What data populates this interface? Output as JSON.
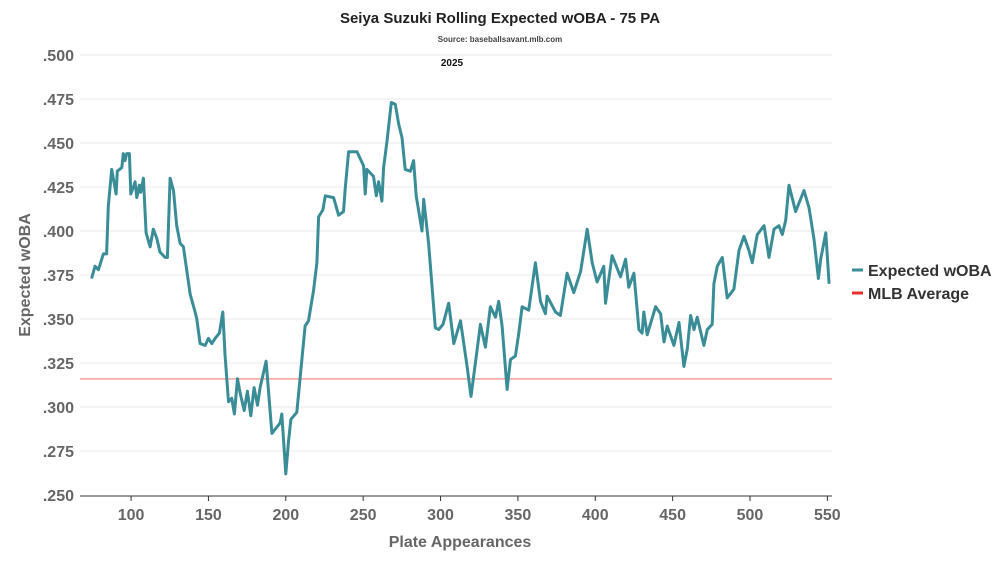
{
  "chart_data": {
    "type": "line",
    "title": "Seiya Suzuki Rolling Expected wOBA - 75 PA",
    "subtitle": "Source: baseballsavant.mlb.com",
    "annotation": "2025",
    "xlabel": "Plate Appearances",
    "ylabel": "Expected wOBA",
    "xlim": [
      67,
      553
    ],
    "ylim": [
      0.25,
      0.5
    ],
    "xticks": [
      100,
      150,
      200,
      250,
      300,
      350,
      400,
      450,
      500,
      550
    ],
    "xtick_labels": [
      "100",
      "150",
      "200",
      "250",
      "300",
      "350",
      "400",
      "450",
      "500",
      "550"
    ],
    "yticks": [
      0.25,
      0.275,
      0.3,
      0.325,
      0.35,
      0.375,
      0.4,
      0.425,
      0.45,
      0.475,
      0.5
    ],
    "ytick_labels": [
      ".250",
      ".275",
      ".300",
      ".325",
      ".350",
      ".375",
      ".400",
      ".425",
      ".450",
      ".475",
      ".500"
    ],
    "grid": true,
    "legend_position": "right",
    "series": [
      {
        "name": "Expected wOBA",
        "color": "#3a8d96",
        "x": [
          74.5,
          76.7,
          78.9,
          82.1,
          84.2,
          85.3,
          87.5,
          90.3,
          91.1,
          94,
          95,
          96.1,
          97.2,
          98.9,
          99.8,
          101.5,
          102.6,
          103.7,
          105.4,
          106.2,
          108,
          109.7,
          112.3,
          114.4,
          116.6,
          118.7,
          122,
          123.5,
          125.2,
          127.4,
          129.5,
          131.7,
          133.8,
          138.2,
          141.4,
          142.5,
          144.6,
          147.9,
          150,
          152.2,
          154.3,
          157.1,
          159.3,
          160.8,
          163,
          165.1,
          166.8,
          168.8,
          170.5,
          173.1,
          175.2,
          177.4,
          179.5,
          181.7,
          183.4,
          187.3,
          191,
          196.4,
          197.4,
          200,
          201.8,
          203.3,
          207.1,
          209.3,
          212.5,
          214.7,
          217.9,
          220.1,
          221.2,
          224,
          225.5,
          230.9,
          234.1,
          237.3,
          238.4,
          240.6,
          246,
          250.3,
          251.3,
          252.4,
          256.7,
          258.5,
          260,
          262.1,
          263.2,
          265.4,
          268.2,
          270.8,
          272.9,
          275.1,
          277.2,
          280.5,
          282.6,
          284.3,
          288,
          289.1,
          292.3,
          296.6,
          298.8,
          301.6,
          305.3,
          308.6,
          312.9,
          317.2,
          319.7,
          323.6,
          325.8,
          329,
          332.2,
          335.5,
          337.6,
          339.8,
          343,
          345.2,
          348.4,
          350.6,
          352.7,
          357,
          361.3,
          364.6,
          367.8,
          368.9,
          374.3,
          377.5,
          381.8,
          386.1,
          390.5,
          394.8,
          398,
          401.2,
          405.5,
          406.6,
          410.9,
          416.3,
          419.6,
          421.7,
          425,
          428.2,
          430.3,
          431.4,
          433.6,
          439,
          442.2,
          444.4,
          446.5,
          450.8,
          454.1,
          457.3,
          459.5,
          461.6,
          463.8,
          465.9,
          470.2,
          472.4,
          475.6,
          476.7,
          478.9,
          482.1,
          485.3,
          489.6,
          492.9,
          496.1,
          499.3,
          501.5,
          504.7,
          509.1,
          512.3,
          515.5,
          518.7,
          520.9,
          523.1,
          525.2,
          529.5,
          534.9,
          538.2,
          541.4,
          544.2,
          545.7,
          549,
          551.1
        ],
        "y": [
          0.373,
          0.38,
          0.378,
          0.387,
          0.387,
          0.414,
          0.435,
          0.421,
          0.434,
          0.436,
          0.444,
          0.44,
          0.444,
          0.444,
          0.421,
          0.425,
          0.428,
          0.419,
          0.426,
          0.422,
          0.43,
          0.399,
          0.391,
          0.401,
          0.396,
          0.388,
          0.385,
          0.385,
          0.43,
          0.423,
          0.403,
          0.393,
          0.391,
          0.364,
          0.354,
          0.35,
          0.336,
          0.335,
          0.339,
          0.336,
          0.339,
          0.342,
          0.354,
          0.329,
          0.303,
          0.305,
          0.296,
          0.316,
          0.308,
          0.298,
          0.309,
          0.295,
          0.311,
          0.301,
          0.311,
          0.326,
          0.285,
          0.291,
          0.296,
          0.262,
          0.281,
          0.293,
          0.297,
          0.317,
          0.346,
          0.349,
          0.366,
          0.382,
          0.408,
          0.412,
          0.42,
          0.419,
          0.409,
          0.411,
          0.424,
          0.445,
          0.445,
          0.437,
          0.421,
          0.435,
          0.431,
          0.42,
          0.428,
          0.417,
          0.436,
          0.451,
          0.473,
          0.472,
          0.461,
          0.453,
          0.435,
          0.434,
          0.44,
          0.42,
          0.4,
          0.418,
          0.393,
          0.345,
          0.344,
          0.347,
          0.359,
          0.336,
          0.349,
          0.323,
          0.306,
          0.332,
          0.347,
          0.334,
          0.357,
          0.351,
          0.36,
          0.346,
          0.31,
          0.327,
          0.329,
          0.342,
          0.357,
          0.355,
          0.382,
          0.36,
          0.353,
          0.363,
          0.354,
          0.352,
          0.376,
          0.365,
          0.377,
          0.401,
          0.382,
          0.371,
          0.38,
          0.359,
          0.386,
          0.374,
          0.384,
          0.368,
          0.376,
          0.344,
          0.342,
          0.354,
          0.341,
          0.357,
          0.353,
          0.337,
          0.346,
          0.335,
          0.348,
          0.323,
          0.333,
          0.352,
          0.344,
          0.351,
          0.335,
          0.344,
          0.347,
          0.37,
          0.38,
          0.385,
          0.362,
          0.367,
          0.389,
          0.397,
          0.389,
          0.382,
          0.398,
          0.403,
          0.385,
          0.401,
          0.403,
          0.398,
          0.406,
          0.426,
          0.411,
          0.423,
          0.413,
          0.395,
          0.373,
          0.384,
          0.399,
          0.37
        ]
      },
      {
        "name": "MLB Average",
        "color": "#e8302a",
        "line_color": "#f4a09b",
        "value": 0.316
      }
    ]
  }
}
